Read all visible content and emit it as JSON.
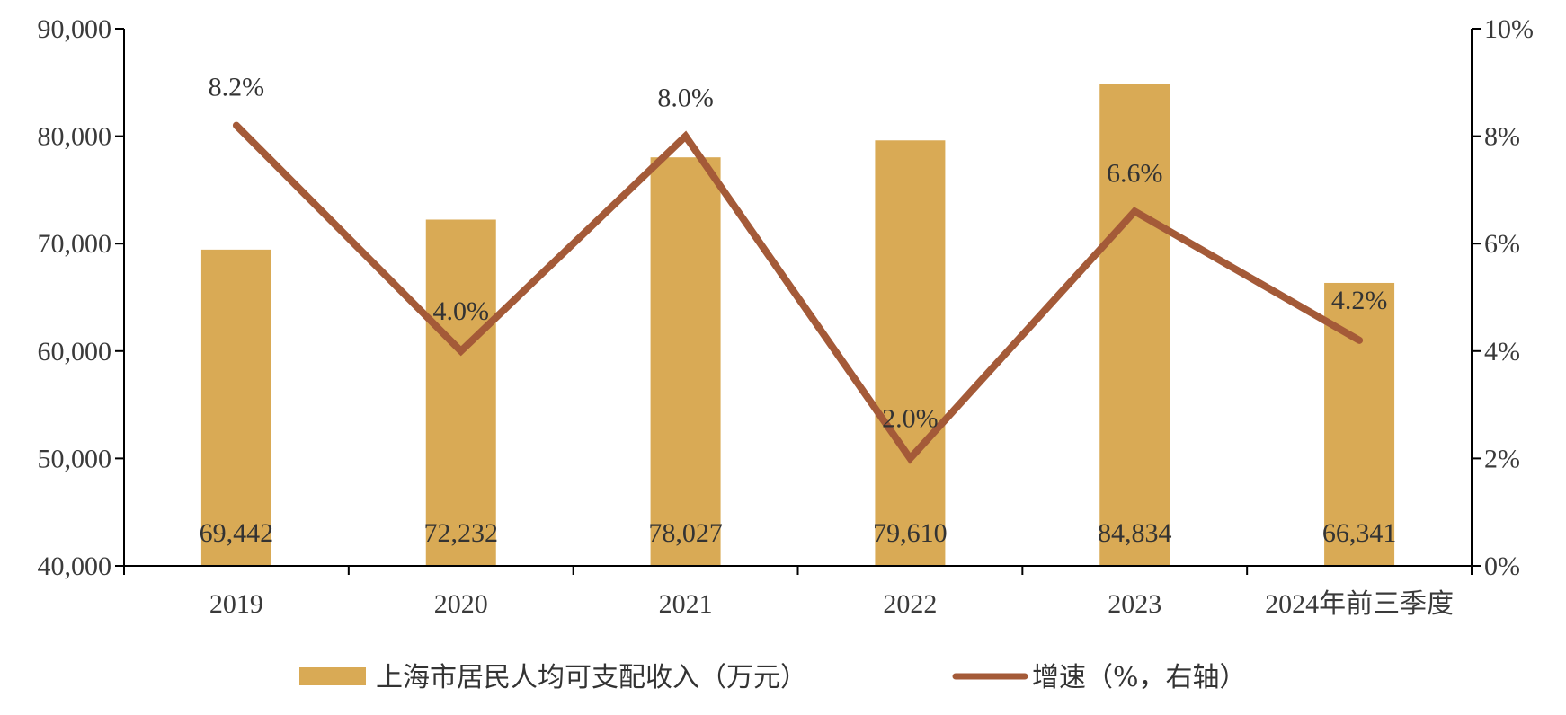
{
  "chart_data": {
    "type": "bar",
    "categories": [
      "2019",
      "2020",
      "2021",
      "2022",
      "2023",
      "2024年前三季度"
    ],
    "series": [
      {
        "name": "上海市居民人均可支配收入（万元）",
        "type": "bar",
        "axis": "left",
        "color": "#D9AA55",
        "values": [
          69442,
          72232,
          78027,
          79610,
          84834,
          66341
        ],
        "labels": [
          "69,442",
          "72,232",
          "78,027",
          "79,610",
          "84,834",
          "66,341"
        ]
      },
      {
        "name": "增速（%，右轴）",
        "type": "line",
        "axis": "right",
        "color": "#A45A38",
        "values": [
          8.2,
          4.0,
          8.0,
          2.0,
          6.6,
          4.2
        ],
        "labels": [
          "8.2%",
          "4.0%",
          "8.0%",
          "2.0%",
          "6.6%",
          "4.2%"
        ]
      }
    ],
    "y_left": {
      "lim": [
        40000,
        90000
      ],
      "ticks": [
        "40,000",
        "50,000",
        "60,000",
        "70,000",
        "80,000",
        "90,000"
      ]
    },
    "y_right": {
      "lim": [
        0,
        10
      ],
      "ticks": [
        "0%",
        "2%",
        "4%",
        "6%",
        "8%",
        "10%"
      ]
    },
    "grid": false,
    "legend": "bottom"
  }
}
